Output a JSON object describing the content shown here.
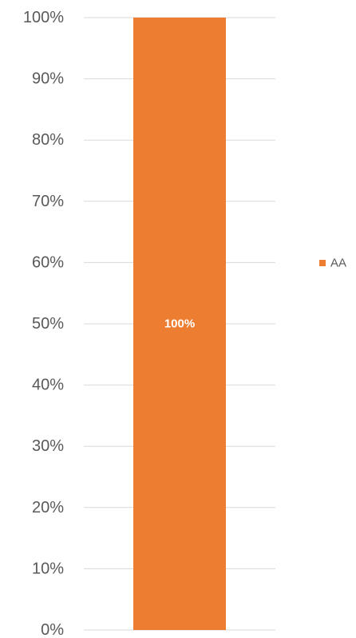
{
  "chart_data": {
    "type": "bar",
    "stacked": true,
    "categories": [
      ""
    ],
    "series": [
      {
        "name": "AA",
        "values": [
          100
        ],
        "color": "#ED7D31",
        "data_labels": [
          "100%"
        ]
      }
    ],
    "ylim": [
      0,
      100
    ],
    "y_ticks": [
      0,
      10,
      20,
      30,
      40,
      50,
      60,
      70,
      80,
      90,
      100
    ],
    "y_tick_labels": [
      "0%",
      "10%",
      "20%",
      "30%",
      "40%",
      "50%",
      "60%",
      "70%",
      "80%",
      "90%",
      "100%"
    ],
    "grid": true,
    "gridline_color": "#D9D9D9",
    "legend_position": "right",
    "title": "",
    "xlabel": "",
    "ylabel": ""
  }
}
